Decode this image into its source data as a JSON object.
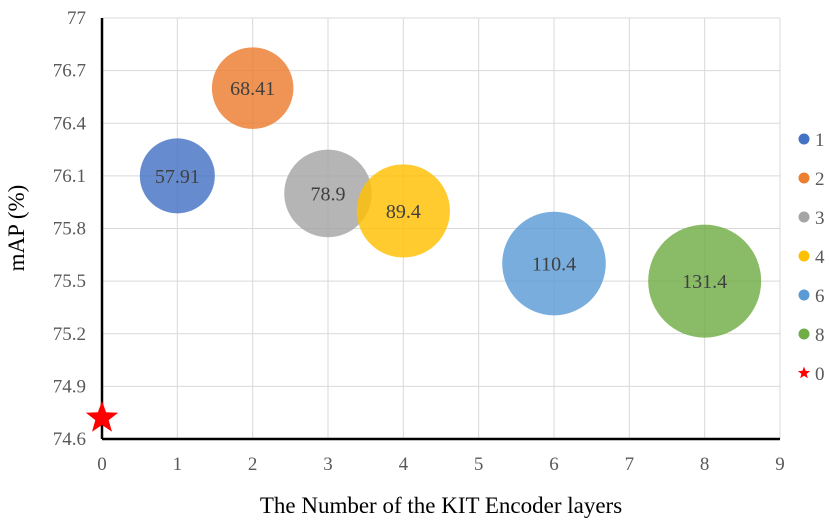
{
  "chart_data": {
    "type": "bubble",
    "xlabel": "The Number of the KIT Encoder layers",
    "ylabel": "mAP (%)",
    "xlim": [
      0,
      9
    ],
    "ylim": [
      74.6,
      77
    ],
    "x_ticks": [
      "0",
      "1",
      "2",
      "3",
      "4",
      "5",
      "6",
      "7",
      "8",
      "9"
    ],
    "y_ticks": [
      "74.6",
      "74.9",
      "75.2",
      "75.5",
      "75.8",
      "76.1",
      "76.4",
      "76.7",
      "77"
    ],
    "grid": true,
    "legend_position": "right",
    "series": [
      {
        "name": "1",
        "x": 1,
        "y": 76.1,
        "size": 57.91,
        "label": "57.91",
        "color": "#4472c4"
      },
      {
        "name": "2",
        "x": 2,
        "y": 76.6,
        "size": 68.41,
        "label": "68.41",
        "color": "#ed7d31"
      },
      {
        "name": "3",
        "x": 3,
        "y": 76.0,
        "size": 78.9,
        "label": "78.9",
        "color": "#a5a5a5"
      },
      {
        "name": "4",
        "x": 4,
        "y": 75.9,
        "size": 89.4,
        "label": "89.4",
        "color": "#ffc000"
      },
      {
        "name": "6",
        "x": 6,
        "y": 75.6,
        "size": 110.4,
        "label": "110.4",
        "color": "#5b9bd5"
      },
      {
        "name": "8",
        "x": 8,
        "y": 75.5,
        "size": 131.4,
        "label": "131.4",
        "color": "#70ad47"
      }
    ],
    "baseline": {
      "name": "0",
      "x": 0,
      "y": 74.72,
      "marker": "star",
      "color": "#ff0000"
    }
  }
}
